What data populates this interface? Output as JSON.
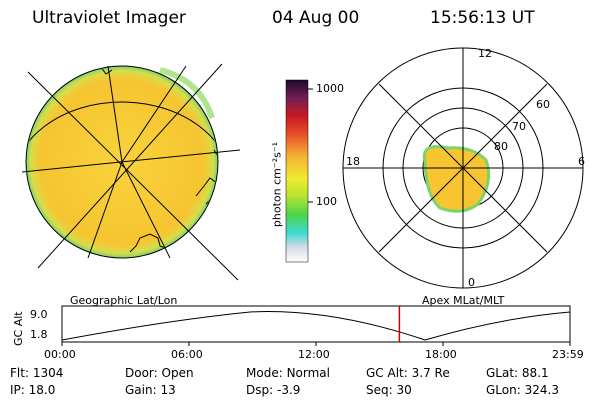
{
  "header": {
    "instrument": "Ultraviolet Imager",
    "date": "04 Aug 00",
    "time": "15:56:13 UT"
  },
  "colorbar": {
    "tick_1000": "1000",
    "tick_100": "100",
    "unit_label": "photon cm⁻²s⁻¹"
  },
  "panels": {
    "left_caption": "Geographic Lat/Lon",
    "right_caption": "Apex MLat/MLT"
  },
  "polar_plot": {
    "mlt_labels": {
      "top": "12",
      "left": "18",
      "right": "6",
      "bottom": "0"
    },
    "lat_labels": [
      "60",
      "70",
      "80"
    ]
  },
  "altitude_plot": {
    "ylabel": "GC Alt",
    "ytick_top": "9.0",
    "ytick_bottom": "1.8",
    "xticks": [
      "00:00",
      "06:00",
      "12:00",
      "18:00",
      "23:59"
    ],
    "current_time_marker_hours": 15.94
  },
  "info": {
    "row1": [
      {
        "key": "Flt:",
        "value": "1304"
      },
      {
        "key": "Door:",
        "value": "Open"
      },
      {
        "key": "Mode:",
        "value": "Normal"
      },
      {
        "key": "GC Alt:",
        "value": "3.7 Re"
      },
      {
        "key": "GLat:",
        "value": "88.1"
      }
    ],
    "row2": [
      {
        "key": "IP:",
        "value": "18.0"
      },
      {
        "key": "Gain:",
        "value": "13"
      },
      {
        "key": "Dsp:",
        "value": "-3.9"
      },
      {
        "key": "Seq:",
        "value": "30"
      },
      {
        "key": "GLon:",
        "value": "324.3"
      }
    ]
  },
  "colors": {
    "image_fill": "#f6c531",
    "image_edge": "#7cd36b",
    "marker": "#cc0000"
  }
}
